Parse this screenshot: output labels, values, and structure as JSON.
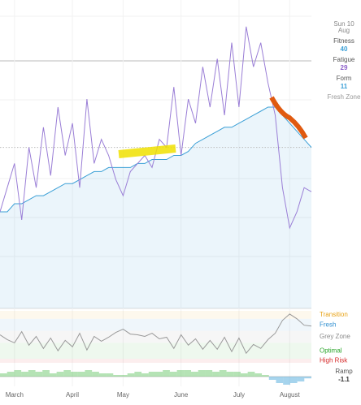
{
  "chart_data": [
    {
      "type": "line",
      "title_hidden": null,
      "categories": [
        null,
        null,
        "March",
        null,
        null,
        null,
        null,
        null,
        null,
        null,
        "April",
        null,
        null,
        null,
        null,
        null,
        null,
        "May",
        null,
        null,
        null,
        null,
        null,
        null,
        null,
        "June",
        null,
        null,
        null,
        null,
        null,
        null,
        null,
        "July",
        null,
        null,
        null,
        null,
        null,
        null,
        "August",
        null,
        null,
        null
      ],
      "ylim": [
        0,
        75
      ],
      "series": [
        {
          "name": "Fitness",
          "color": "#3a9fd6",
          "values": [
            24,
            24,
            26,
            26,
            27,
            28,
            28,
            29,
            30,
            31,
            31,
            32,
            33,
            34,
            34,
            35,
            35,
            35,
            35,
            36,
            36,
            37,
            37,
            37,
            38,
            38,
            39,
            41,
            42,
            43,
            44,
            45,
            45,
            46,
            47,
            48,
            49,
            50,
            50,
            48,
            46,
            44,
            42,
            40
          ]
        },
        {
          "name": "Fatigue",
          "color": "#9a7ed6",
          "values": [
            24,
            30,
            36,
            22,
            40,
            30,
            45,
            33,
            50,
            38,
            46,
            30,
            52,
            36,
            42,
            38,
            32,
            28,
            34,
            36,
            38,
            35,
            42,
            40,
            55,
            38,
            52,
            46,
            60,
            50,
            62,
            48,
            66,
            50,
            70,
            60,
            66,
            56,
            48,
            30,
            20,
            24,
            30,
            29
          ]
        }
      ]
    },
    {
      "type": "line",
      "ylim": [
        -35,
        30
      ],
      "zones": [
        {
          "label": "Transition",
          "from": 20,
          "to": 30,
          "color": "#e8a317"
        },
        {
          "label": "Fresh",
          "from": 5,
          "to": 20,
          "color": "#2f8fd0"
        },
        {
          "label": "Grey Zone",
          "from": -10,
          "to": 5,
          "color": "#8a8a8a"
        },
        {
          "label": "Optimal",
          "from": -30,
          "to": -10,
          "color": "#2aa52a"
        },
        {
          "label": "High Risk",
          "from": -35,
          "to": -30,
          "color": "#d62b2b"
        }
      ],
      "series": [
        {
          "name": "Form",
          "color": "#999999",
          "values": [
            0,
            -6,
            -10,
            4,
            -13,
            -2,
            -17,
            -4,
            -20,
            -7,
            -15,
            2,
            -19,
            -2,
            -8,
            -3,
            3,
            7,
            1,
            0,
            -2,
            2,
            -5,
            -3,
            -17,
            0,
            -13,
            -5,
            -18,
            -7,
            -18,
            -3,
            -21,
            -4,
            -23,
            -12,
            -17,
            -6,
            2,
            18,
            26,
            20,
            12,
            11
          ]
        }
      ]
    },
    {
      "type": "bar",
      "ylim": [
        -6,
        6
      ],
      "color": "#5cc05c",
      "negative_color": "#3a9fd6",
      "values": [
        2,
        3,
        4,
        3,
        4,
        3,
        4,
        2,
        3,
        4,
        3,
        3,
        4,
        3,
        2,
        2,
        1,
        1,
        2,
        3,
        2,
        3,
        3,
        4,
        3,
        4,
        4,
        3,
        4,
        4,
        3,
        4,
        3,
        3,
        2,
        3,
        2,
        1,
        -2,
        -4,
        -5,
        -4,
        -3,
        -1.1
      ]
    }
  ],
  "sidebar": {
    "day": "Sun 10",
    "month": "Aug",
    "fitness_label": "Fitness",
    "fitness": 40,
    "fatigue_label": "Fatigue",
    "fatigue": 29,
    "form_label": "Form",
    "form": 11,
    "zone": "Fresh Zone",
    "ramp_label": "Ramp",
    "ramp": -1.1
  }
}
